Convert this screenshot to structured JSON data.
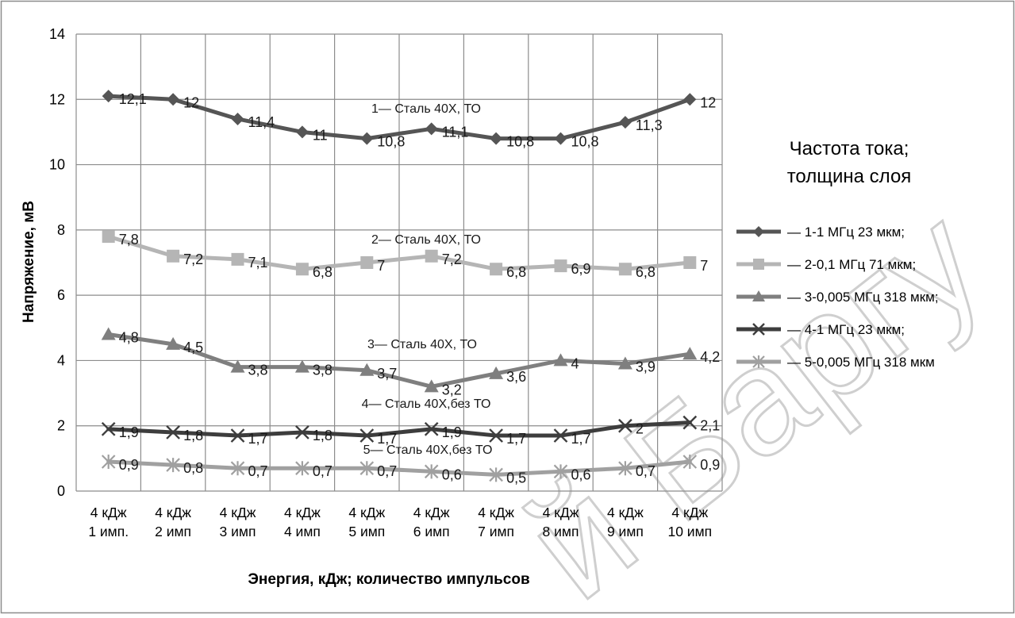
{
  "chart_data": {
    "type": "line",
    "title": "",
    "xlabel": "Энергия, кДж; количество импульсов",
    "ylabel": "Напряжение, мВ",
    "ylim": [
      0,
      14
    ],
    "yticks": [
      0,
      2,
      4,
      6,
      8,
      10,
      12,
      14
    ],
    "grid": true,
    "legend_placement": "right",
    "categories": [
      [
        "4 кДж",
        "1 имп."
      ],
      [
        "4 кДж",
        "2 имп"
      ],
      [
        "4 кДж",
        "3 имп"
      ],
      [
        "4 кДж",
        "4 имп"
      ],
      [
        "4 кДж",
        "5 имп"
      ],
      [
        "4 кДж",
        "6 имп"
      ],
      [
        "4 кДж",
        "7 имп"
      ],
      [
        "4 кДж",
        "8 имп"
      ],
      [
        "4 кДж",
        "9 имп"
      ],
      [
        "4 кДж",
        "10 имп"
      ]
    ],
    "legend_title": [
      "Частота тока;",
      "толщина слоя"
    ],
    "series": [
      {
        "name": "— 1-1 МГц 23 мкм;",
        "color": "#555555",
        "marker": "diamond",
        "values": [
          12.1,
          12,
          11.4,
          11,
          10.8,
          11.1,
          10.8,
          10.8,
          11.3,
          12
        ],
        "value_labels": [
          "12,1",
          "12",
          "11,4",
          "11",
          "10,8",
          "11,1",
          "10,8",
          "10,8",
          "11,3",
          "12"
        ],
        "annotation": "1— Сталь 40Х, ТО"
      },
      {
        "name": "— 2-0,1 МГц 71 мкм;",
        "color": "#b5b5b5",
        "marker": "square",
        "values": [
          7.8,
          7.2,
          7.1,
          6.8,
          7,
          7.2,
          6.8,
          6.9,
          6.8,
          7
        ],
        "value_labels": [
          "7,8",
          "7,2",
          "7,1",
          "6,8",
          "7",
          "7,2",
          "6,8",
          "6,9",
          "6,8",
          "7"
        ],
        "annotation": "2— Сталь 40Х, ТО"
      },
      {
        "name": "— 3-0,005 МГц 318 мкм;",
        "color": "#7f7f7f",
        "marker": "triangle",
        "values": [
          4.8,
          4.5,
          3.8,
          3.8,
          3.7,
          3.2,
          3.6,
          4,
          3.9,
          4.2
        ],
        "value_labels": [
          "4,8",
          "4,5",
          "3,8",
          "3,8",
          "3,7",
          "3,2",
          "3,6",
          "4",
          "3,9",
          "4,2"
        ],
        "annotation": "3— Сталь 40Х, ТО"
      },
      {
        "name": "— 4-1 МГц 23 мкм;",
        "color": "#3d3d3d",
        "marker": "x",
        "values": [
          1.9,
          1.8,
          1.7,
          1.8,
          1.7,
          1.9,
          1.7,
          1.7,
          2,
          2.1
        ],
        "value_labels": [
          "1,9",
          "1,8",
          "1,7",
          "1,8",
          "1,7",
          "1,9",
          "1,7",
          "1,7",
          "2",
          "2,1"
        ],
        "annotation": "4— Сталь 40Х,без ТО"
      },
      {
        "name": "— 5-0,005 МГц 318 мкм",
        "color": "#a0a0a0",
        "marker": "star",
        "values": [
          0.9,
          0.8,
          0.7,
          0.7,
          0.7,
          0.6,
          0.5,
          0.6,
          0.7,
          0.9
        ],
        "value_labels": [
          "0,9",
          "0,8",
          "0,7",
          "0,7",
          "0,7",
          "0,6",
          "0,5",
          "0,6",
          "0,7",
          "0,9"
        ],
        "annotation": "5— Сталь 40Х,без ТО"
      }
    ],
    "watermark": "й Баргу"
  }
}
